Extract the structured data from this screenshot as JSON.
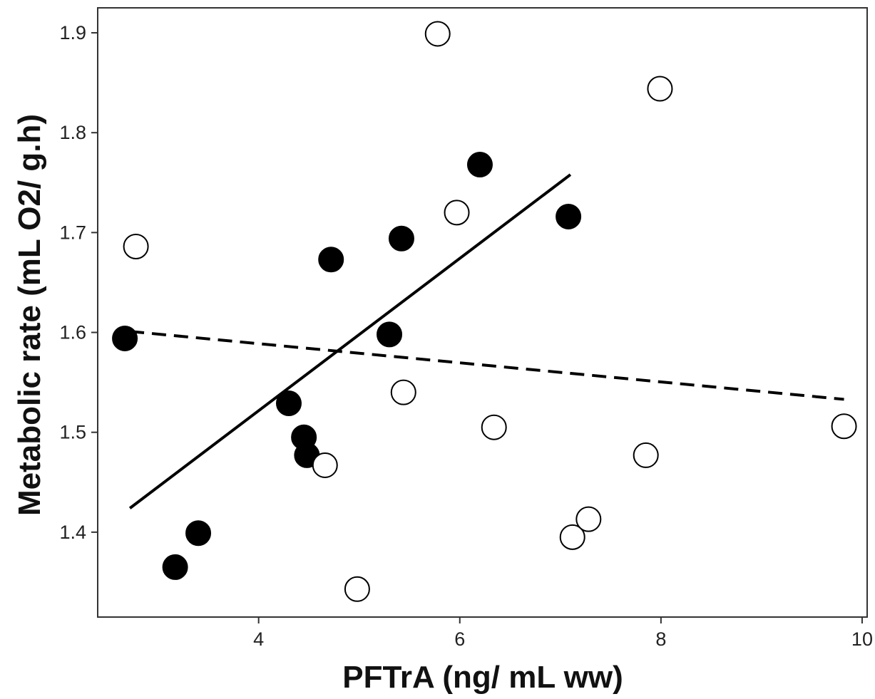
{
  "chart_data": {
    "type": "scatter",
    "xlabel": "PFTrA (ng/ mL ww)",
    "ylabel": "Metabolic rate (mL O2/ g.h)",
    "xlim": [
      2.4,
      10.05
    ],
    "ylim": [
      1.315,
      1.925
    ],
    "xticks": [
      4,
      6,
      8,
      10
    ],
    "yticks": [
      1.4,
      1.5,
      1.6,
      1.7,
      1.8,
      1.9
    ],
    "xtick_labels": [
      "4",
      "6",
      "8",
      "10"
    ],
    "ytick_labels": [
      "1.4",
      "1.5",
      "1.6",
      "1.7",
      "1.8",
      "1.9"
    ],
    "grid": false,
    "legend": "none",
    "series": [
      {
        "marker": "filled-circle",
        "color": "#000000",
        "x": [
          2.67,
          3.17,
          3.4,
          4.3,
          4.45,
          4.48,
          4.72,
          5.3,
          5.42,
          6.2,
          7.08
        ],
        "y": [
          1.594,
          1.365,
          1.399,
          1.529,
          1.495,
          1.477,
          1.673,
          1.598,
          1.694,
          1.768,
          1.716
        ]
      },
      {
        "marker": "open-circle",
        "color": "#000000",
        "x": [
          2.78,
          4.66,
          4.98,
          5.44,
          5.78,
          5.97,
          6.34,
          7.12,
          7.28,
          7.85,
          7.99,
          9.82
        ],
        "y": [
          1.686,
          1.467,
          1.343,
          1.54,
          1.899,
          1.72,
          1.505,
          1.395,
          1.413,
          1.477,
          1.844,
          1.506
        ]
      }
    ],
    "fit_lines": [
      {
        "style": "solid",
        "x": [
          2.72,
          7.1
        ],
        "y": [
          1.424,
          1.758
        ]
      },
      {
        "style": "dashed",
        "x": [
          2.72,
          9.82
        ],
        "y": [
          1.601,
          1.533
        ]
      }
    ]
  }
}
